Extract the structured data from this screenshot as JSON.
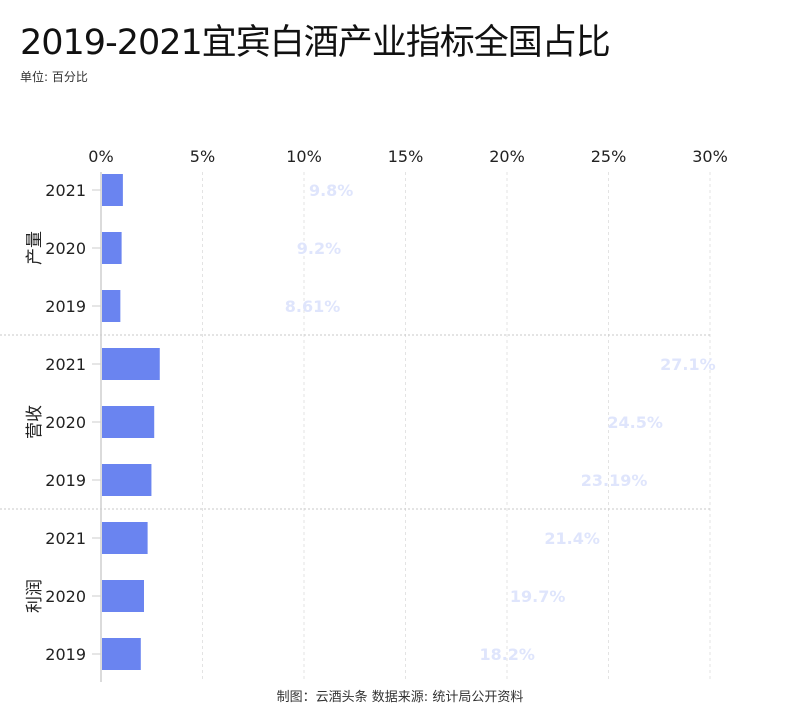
{
  "title": "2019-2021宜宾白酒产业指标全国占比",
  "subtitle": "单位: 百分比",
  "footer": "制图：云酒头条    数据来源: 统计局公开资料",
  "chart_data": {
    "type": "bar",
    "orientation": "horizontal",
    "xlim": [
      0,
      30
    ],
    "xticks": [
      "0%",
      "5%",
      "10%",
      "15%",
      "20%",
      "25%",
      "30%"
    ],
    "grid": true,
    "bar_color": "#6a84f0",
    "label_color": "#dfe5fc",
    "groups": [
      {
        "name": "产量",
        "categories": [
          "2021",
          "2020",
          "2019"
        ],
        "values": [
          9.8,
          9.2,
          8.61
        ],
        "labels": [
          "9.8%",
          "9.2%",
          "8.61%"
        ]
      },
      {
        "name": "营收",
        "categories": [
          "2021",
          "2020",
          "2019"
        ],
        "values": [
          27.1,
          24.5,
          23.19
        ],
        "labels": [
          "27.1%",
          "24.5%",
          "23.19%"
        ]
      },
      {
        "name": "利润",
        "categories": [
          "2021",
          "2020",
          "2019"
        ],
        "values": [
          21.4,
          19.7,
          18.2
        ],
        "labels": [
          "21.4%",
          "19.7%",
          "18.2%"
        ]
      }
    ]
  }
}
